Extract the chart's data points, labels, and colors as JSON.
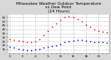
{
  "title": "Milwaukee Weather Outdoor Temperature\nvs Dew Point\n(24 Hours)",
  "title_fontsize": 4.2,
  "title_color": "#000000",
  "bg_color": "#d8d8d8",
  "plot_bg_color": "#ffffff",
  "grid_color": "#888888",
  "temp_color": "#ff0000",
  "dew_color": "#0000cc",
  "black_dot_color": "#000000",
  "x_hours": [
    0,
    1,
    2,
    3,
    4,
    5,
    6,
    7,
    8,
    9,
    10,
    11,
    12,
    13,
    14,
    15,
    16,
    17,
    18,
    19,
    20,
    21,
    22,
    23
  ],
  "temp_values": [
    28,
    27,
    26,
    25,
    24,
    24,
    25,
    28,
    33,
    38,
    43,
    48,
    52,
    55,
    56,
    55,
    53,
    50,
    46,
    43,
    40,
    38,
    37,
    36
  ],
  "dew_values": [
    18,
    17,
    16,
    15,
    14,
    14,
    15,
    16,
    17,
    18,
    19,
    20,
    22,
    24,
    25,
    26,
    27,
    27,
    26,
    25,
    24,
    24,
    24,
    23
  ],
  "ylim": [
    10,
    60
  ],
  "yticks": [
    15,
    20,
    25,
    30,
    35,
    40,
    45,
    50,
    55
  ],
  "marker_size": 1.8,
  "tick_color": "#000000",
  "tick_fontsize": 3.2,
  "grid_style": "--",
  "grid_linewidth": 0.4,
  "grid_alpha": 0.7,
  "vgrid_positions": [
    0,
    3,
    6,
    9,
    12,
    15,
    18,
    21
  ],
  "xtick_step": 1,
  "xlim": [
    -0.5,
    23.5
  ]
}
